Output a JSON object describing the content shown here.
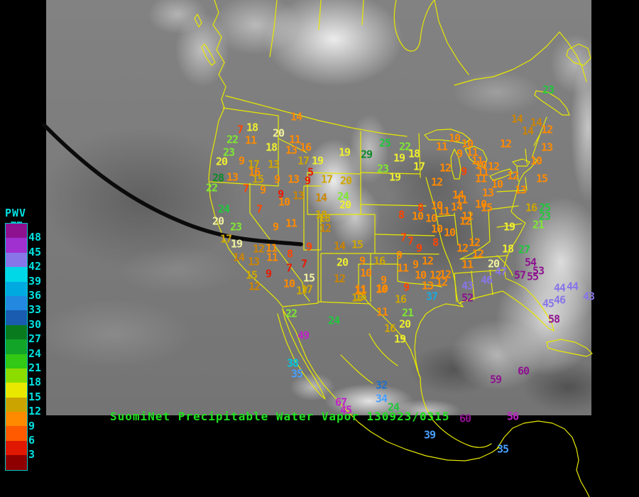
{
  "title": {
    "text": "SuomiNet Precipitable Water Vapor 130923/0315",
    "color": "#20E020"
  },
  "legend": {
    "title": "PWV",
    "unit": "mm",
    "text_color": "#00E0E0",
    "labels": [
      "48",
      "45",
      "42",
      "39",
      "36",
      "33",
      "30",
      "27",
      "24",
      "21",
      "18",
      "15",
      "12",
      "9",
      "6",
      "3"
    ],
    "colors": [
      "#8E1290",
      "#A030D0",
      "#8876E8",
      "#00D8E8",
      "#00AAE0",
      "#2288E0",
      "#1A5CB0",
      "#0A7A1E",
      "#12A428",
      "#32C814",
      "#8CDC00",
      "#E8E800",
      "#CCA400",
      "#FF8A00",
      "#FF5A00",
      "#E01800",
      "#8E0000"
    ]
  },
  "map": {
    "outline_color": "#E8E800",
    "terminator_color": "#0b0b0b",
    "background_color": "#000000"
  },
  "palette": {
    "red": "#E81800",
    "orangered": "#FF4400",
    "orange": "#FF8A00",
    "dkgold": "#CC8400",
    "gold": "#CFA600",
    "yellow": "#EFEF30",
    "paleyellow": "#F2F2A0",
    "gyellow": "#7FE832",
    "green": "#1FC83C",
    "dkgreen": "#0D8A28",
    "blue": "#2070C8",
    "ltblue": "#48A0FF",
    "skyblue": "#18AAE0",
    "cyan": "#00C8DC",
    "violet": "#8876E8",
    "magenta": "#C023C8",
    "purple": "#8E1290"
  },
  "stations": [
    [
      417,
      165,
      "14",
      "orange"
    ],
    [
      338,
      183,
      "7",
      "orangered"
    ],
    [
      355,
      180,
      "18",
      "yellow"
    ],
    [
      327,
      197,
      "22",
      "gyellow"
    ],
    [
      353,
      198,
      "11",
      "orange"
    ],
    [
      392,
      188,
      "20",
      "paleyellow"
    ],
    [
      415,
      197,
      "11",
      "orange"
    ],
    [
      322,
      215,
      "23",
      "gyellow"
    ],
    [
      382,
      208,
      "18",
      "yellow"
    ],
    [
      410,
      212,
      "13",
      "orange"
    ],
    [
      430,
      208,
      "16",
      "orange"
    ],
    [
      485,
      215,
      "19",
      "yellow"
    ],
    [
      312,
      228,
      "20",
      "yellow"
    ],
    [
      340,
      227,
      "9",
      "orange"
    ],
    [
      357,
      232,
      "17",
      "gold"
    ],
    [
      385,
      232,
      "13",
      "gold"
    ],
    [
      427,
      227,
      "17",
      "gold"
    ],
    [
      447,
      227,
      "19",
      "yellow"
    ],
    [
      437,
      243,
      "5",
      "red"
    ],
    [
      307,
      251,
      "28",
      "dkgreen"
    ],
    [
      327,
      250,
      "13",
      "orange"
    ],
    [
      358,
      243,
      "16",
      "orange"
    ],
    [
      363,
      253,
      "15",
      "gold"
    ],
    [
      390,
      253,
      "9",
      "orange"
    ],
    [
      413,
      253,
      "13",
      "orange"
    ],
    [
      433,
      255,
      "9",
      "red"
    ],
    [
      460,
      253,
      "17",
      "gold"
    ],
    [
      487,
      255,
      "20",
      "gold"
    ],
    [
      298,
      265,
      "22",
      "gyellow"
    ],
    [
      346,
      266,
      "7",
      "orangered"
    ],
    [
      370,
      268,
      "9",
      "orange"
    ],
    [
      395,
      274,
      "9",
      "red"
    ],
    [
      420,
      276,
      "13",
      "dkgold"
    ],
    [
      452,
      279,
      "14",
      "dkgold"
    ],
    [
      483,
      277,
      "24",
      "gyellow"
    ],
    [
      486,
      289,
      "20",
      "yellow"
    ],
    [
      452,
      303,
      "18",
      "gold"
    ],
    [
      542,
      202,
      "25",
      "green"
    ],
    [
      570,
      207,
      "22",
      "gyellow"
    ],
    [
      516,
      218,
      "29",
      "dkgreen"
    ],
    [
      562,
      223,
      "19",
      "yellow"
    ],
    [
      583,
      217,
      "18",
      "yellow"
    ],
    [
      539,
      238,
      "23",
      "gyellow"
    ],
    [
      590,
      235,
      "17",
      "yellow"
    ],
    [
      556,
      250,
      "19",
      "yellow"
    ],
    [
      615,
      257,
      "12",
      "orange"
    ],
    [
      565,
      303,
      "8",
      "orangered"
    ],
    [
      640,
      195,
      "10",
      "orange"
    ],
    [
      622,
      207,
      "11",
      "orange"
    ],
    [
      658,
      203,
      "10",
      "orange"
    ],
    [
      647,
      217,
      "9",
      "orange"
    ],
    [
      665,
      215,
      "11",
      "orange"
    ],
    [
      712,
      203,
      "12",
      "orange"
    ],
    [
      672,
      227,
      "11",
      "orange"
    ],
    [
      677,
      233,
      "10",
      "orange"
    ],
    [
      695,
      235,
      "12",
      "orange"
    ],
    [
      627,
      237,
      "12",
      "orange"
    ],
    [
      680,
      243,
      "11",
      "orange"
    ],
    [
      653,
      242,
      "9",
      "orangered"
    ],
    [
      677,
      252,
      "11",
      "orange"
    ],
    [
      700,
      260,
      "10",
      "orange"
    ],
    [
      772,
      127,
      "23",
      "green"
    ],
    [
      728,
      168,
      "14",
      "dkgold"
    ],
    [
      755,
      173,
      "14",
      "dkgold"
    ],
    [
      743,
      185,
      "14",
      "dkgold"
    ],
    [
      770,
      183,
      "12",
      "orange"
    ],
    [
      770,
      208,
      "13",
      "orange"
    ],
    [
      755,
      227,
      "10",
      "orange"
    ],
    [
      722,
      248,
      "12",
      "orange"
    ],
    [
      763,
      252,
      "15",
      "orange"
    ],
    [
      733,
      268,
      "13",
      "orange"
    ],
    [
      687,
      272,
      "13",
      "orange"
    ],
    [
      645,
      275,
      "14",
      "orange"
    ],
    [
      650,
      282,
      "11",
      "orange"
    ],
    [
      643,
      292,
      "14",
      "orange"
    ],
    [
      677,
      288,
      "10",
      "orange"
    ],
    [
      685,
      293,
      "15",
      "orange"
    ],
    [
      658,
      305,
      "12",
      "orange"
    ],
    [
      748,
      293,
      "16",
      "gold"
    ],
    [
      767,
      293,
      "25",
      "green"
    ],
    [
      767,
      305,
      "23",
      "green"
    ],
    [
      758,
      317,
      "21",
      "gyellow"
    ],
    [
      717,
      320,
      "19",
      "yellow"
    ],
    [
      668,
      342,
      "12",
      "orange"
    ],
    [
      651,
      350,
      "12",
      "orange"
    ],
    [
      673,
      358,
      "12",
      "orange"
    ],
    [
      715,
      351,
      "18",
      "yellow"
    ],
    [
      738,
      352,
      "27",
      "green"
    ],
    [
      658,
      373,
      "11",
      "orange"
    ],
    [
      695,
      372,
      "20",
      "paleyellow"
    ],
    [
      747,
      370,
      "54",
      "purple"
    ],
    [
      705,
      383,
      "47",
      "violet"
    ],
    [
      758,
      382,
      "53",
      "purple"
    ],
    [
      732,
      388,
      "57",
      "purple"
    ],
    [
      750,
      390,
      "55",
      "purple"
    ],
    [
      685,
      395,
      "46",
      "violet"
    ],
    [
      658,
      403,
      "43",
      "violet"
    ],
    [
      788,
      406,
      "44",
      "violet"
    ],
    [
      806,
      404,
      "44",
      "violet"
    ],
    [
      658,
      420,
      "52",
      "purple"
    ],
    [
      772,
      428,
      "45",
      "violet"
    ],
    [
      788,
      423,
      "46",
      "violet"
    ],
    [
      829,
      418,
      "43",
      "violet"
    ],
    [
      780,
      450,
      "58",
      "purple"
    ],
    [
      737,
      523,
      "60",
      "purple"
    ],
    [
      698,
      535,
      "59",
      "purple"
    ],
    [
      592,
      293,
      "8",
      "orangered"
    ],
    [
      615,
      290,
      "10",
      "orange"
    ],
    [
      588,
      305,
      "10",
      "orange"
    ],
    [
      607,
      308,
      "10",
      "orange"
    ],
    [
      625,
      298,
      "11",
      "orange"
    ],
    [
      655,
      312,
      "12",
      "orange"
    ],
    [
      615,
      323,
      "10",
      "orange"
    ],
    [
      633,
      328,
      "10",
      "orange"
    ],
    [
      568,
      335,
      "7",
      "orangered"
    ],
    [
      578,
      340,
      "7",
      "orangered"
    ],
    [
      613,
      342,
      "8",
      "orangered"
    ],
    [
      590,
      350,
      "9",
      "orangered"
    ],
    [
      562,
      360,
      "9",
      "orange"
    ],
    [
      602,
      368,
      "12",
      "orange"
    ],
    [
      585,
      373,
      "9",
      "orange"
    ],
    [
      567,
      378,
      "11",
      "orange"
    ],
    [
      592,
      388,
      "10",
      "orange"
    ],
    [
      613,
      388,
      "12",
      "orange"
    ],
    [
      627,
      387,
      "12",
      "orange"
    ],
    [
      602,
      403,
      "13",
      "orange"
    ],
    [
      622,
      398,
      "12",
      "orange"
    ],
    [
      572,
      405,
      "9",
      "orangered"
    ],
    [
      540,
      395,
      "9",
      "orange"
    ],
    [
      538,
      407,
      "10",
      "orange"
    ],
    [
      564,
      422,
      "16",
      "gold"
    ],
    [
      608,
      418,
      "37",
      "skyblue"
    ],
    [
      315,
      295,
      "24",
      "green"
    ],
    [
      307,
      312,
      "20",
      "paleyellow"
    ],
    [
      332,
      320,
      "23",
      "gyellow"
    ],
    [
      365,
      295,
      "7",
      "orangered"
    ],
    [
      400,
      285,
      "10",
      "orange"
    ],
    [
      318,
      337,
      "17",
      "gold"
    ],
    [
      333,
      344,
      "19",
      "paleyellow"
    ],
    [
      388,
      320,
      "9",
      "orange"
    ],
    [
      410,
      315,
      "11",
      "orange"
    ],
    [
      457,
      308,
      "18",
      "gold"
    ],
    [
      458,
      322,
      "12",
      "dkgold"
    ],
    [
      364,
      351,
      "12",
      "dkgold"
    ],
    [
      382,
      350,
      "11",
      "orange"
    ],
    [
      383,
      363,
      "11",
      "orange"
    ],
    [
      408,
      358,
      "8",
      "orangered"
    ],
    [
      336,
      363,
      "14",
      "dkgold"
    ],
    [
      357,
      369,
      "13",
      "dkgold"
    ],
    [
      378,
      386,
      "9",
      "red"
    ],
    [
      354,
      388,
      "15",
      "gold"
    ],
    [
      358,
      404,
      "12",
      "dkgold"
    ],
    [
      407,
      378,
      "7",
      "red"
    ],
    [
      428,
      372,
      "7",
      "red"
    ],
    [
      435,
      348,
      "9",
      "orangered"
    ],
    [
      435,
      392,
      "15",
      "paleyellow"
    ],
    [
      407,
      400,
      "10",
      "orange"
    ],
    [
      432,
      408,
      "17",
      "gold"
    ],
    [
      478,
      347,
      "14",
      "dkgold"
    ],
    [
      503,
      345,
      "15",
      "gold"
    ],
    [
      482,
      370,
      "20",
      "yellow"
    ],
    [
      510,
      368,
      "9",
      "orange"
    ],
    [
      515,
      385,
      "10",
      "orange"
    ],
    [
      478,
      393,
      "12",
      "dkgold"
    ],
    [
      508,
      408,
      "11",
      "orange"
    ],
    [
      508,
      418,
      "15",
      "gold"
    ],
    [
      534,
      368,
      "16",
      "gold"
    ],
    [
      425,
      410,
      "17",
      "gold"
    ],
    [
      503,
      420,
      "15",
      "gold"
    ],
    [
      507,
      410,
      "11",
      "orange"
    ],
    [
      537,
      408,
      "10",
      "orange"
    ],
    [
      410,
      442,
      "22",
      "gyellow"
    ],
    [
      470,
      452,
      "24",
      "green"
    ],
    [
      538,
      440,
      "11",
      "orange"
    ],
    [
      574,
      441,
      "21",
      "gyellow"
    ],
    [
      427,
      473,
      "49",
      "magenta"
    ],
    [
      549,
      463,
      "16",
      "gold"
    ],
    [
      570,
      457,
      "20",
      "yellow"
    ],
    [
      563,
      478,
      "19",
      "yellow"
    ],
    [
      412,
      512,
      "38",
      "cyan"
    ],
    [
      418,
      527,
      "35",
      "ltblue"
    ],
    [
      537,
      543,
      "32",
      "blue"
    ],
    [
      537,
      562,
      "34",
      "ltblue"
    ],
    [
      480,
      567,
      "67",
      "magenta"
    ],
    [
      554,
      574,
      "24",
      "green"
    ],
    [
      487,
      578,
      "45",
      "magenta"
    ],
    [
      655,
      590,
      "60",
      "purple"
    ],
    [
      722,
      587,
      "56",
      "magenta"
    ],
    [
      605,
      613,
      "39",
      "ltblue"
    ],
    [
      708,
      633,
      "35",
      "ltblue"
    ]
  ]
}
